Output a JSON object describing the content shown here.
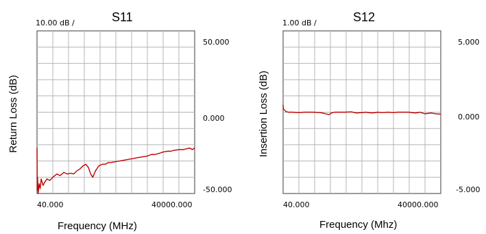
{
  "chart_data": [
    {
      "type": "line",
      "title": "S11",
      "scale_label": "10.00 dB /",
      "xlabel": "Frequency (MHz)",
      "ylabel": "Return Loss (dB)",
      "x_scale": "log",
      "xlim": [
        40,
        40000
      ],
      "ylim": [
        -50,
        50
      ],
      "x_ticks": [
        "40.000",
        "40000.000"
      ],
      "y_ticks": [
        "50.000",
        "0.000",
        "-50.000"
      ],
      "grid": true,
      "trace_color": "#c00000",
      "series": [
        {
          "x": [
            40,
            40.5,
            41,
            42,
            44,
            46,
            48,
            52,
            56,
            62,
            70,
            80,
            95,
            110,
            130,
            150,
            175,
            200,
            230,
            260,
            300,
            340,
            380,
            420,
            460,
            520,
            600,
            700,
            800,
            900,
            1000,
            1200,
            1500,
            1800,
            2200,
            2700,
            3200,
            4000,
            5000,
            6000,
            7000,
            8000,
            9000,
            10000,
            12000,
            14000,
            16000,
            20000,
            24000,
            28000,
            32000,
            36000,
            40000
          ],
          "y": [
            -22,
            -48,
            -40,
            -50,
            -44,
            -47,
            -41,
            -45,
            -43,
            -41,
            -42,
            -40,
            -38,
            -39,
            -37,
            -38,
            -37.5,
            -38,
            -36,
            -35,
            -33,
            -32,
            -34,
            -38,
            -40,
            -36,
            -33,
            -32,
            -32,
            -31,
            -31,
            -30.5,
            -30,
            -29.5,
            -29,
            -28.5,
            -28,
            -27.5,
            -27,
            -26,
            -26,
            -25.5,
            -25,
            -24.5,
            -24,
            -24,
            -23.5,
            -23,
            -23,
            -22.5,
            -22,
            -23,
            -22
          ]
        }
      ]
    },
    {
      "type": "line",
      "title": "S12",
      "scale_label": "1.00 dB /",
      "xlabel": "Frequency (Mhz)",
      "ylabel": "Insertion Loss (dB)",
      "x_scale": "log",
      "xlim": [
        40,
        40000
      ],
      "ylim": [
        -5,
        5
      ],
      "x_ticks": [
        "40.000",
        "40000.000"
      ],
      "y_ticks": [
        "5.000",
        "0.000",
        "-5.000"
      ],
      "grid": true,
      "trace_color": "#c00000",
      "series": [
        {
          "x": [
            40,
            40.5,
            42,
            45,
            50,
            60,
            80,
            100,
            150,
            200,
            260,
            300,
            330,
            380,
            450,
            600,
            800,
            1000,
            1500,
            2000,
            2500,
            3000,
            4000,
            5000,
            6000,
            8000,
            10000,
            13000,
            16000,
            20000,
            26000,
            32000,
            40000
          ],
          "y": [
            0.45,
            0.2,
            0.15,
            0.05,
            0.0,
            0.0,
            -0.02,
            0.0,
            0.0,
            -0.02,
            -0.1,
            -0.15,
            -0.05,
            0.0,
            0.0,
            0.0,
            0.02,
            -0.05,
            0.0,
            -0.05,
            0.0,
            -0.02,
            0.0,
            -0.02,
            0.0,
            0.0,
            0.0,
            -0.05,
            0.0,
            -0.1,
            -0.05,
            -0.1,
            -0.12
          ]
        }
      ]
    }
  ]
}
